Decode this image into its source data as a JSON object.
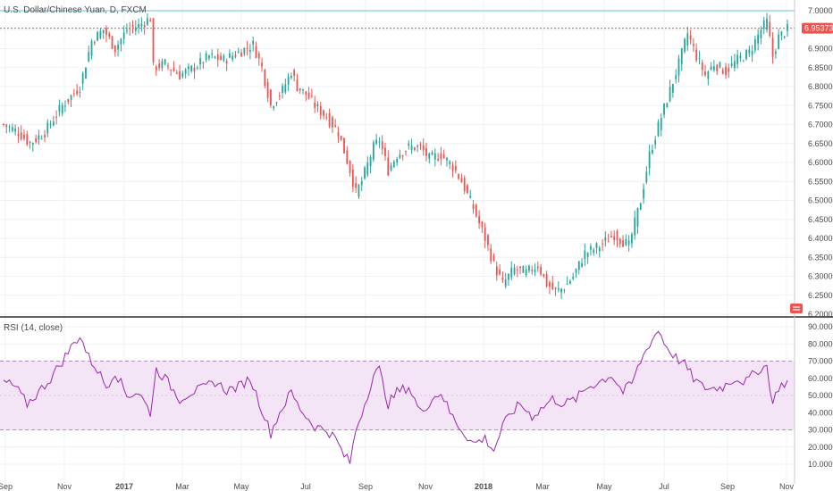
{
  "chart_data": [
    {
      "type": "candlestick",
      "title": "U.S. Dollar/Chinese Yuan, D, FXCM",
      "price_label": "6.95373",
      "ylim": [
        6.19,
        7.05
      ],
      "y_ticks": [
        "7.00000",
        "6.95000",
        "6.90000",
        "6.85000",
        "6.80000",
        "6.75000",
        "6.70000",
        "6.65000",
        "6.60000",
        "6.55000",
        "6.50000",
        "6.45000",
        "6.40000",
        "6.35000",
        "6.30000",
        "6.25000",
        "6.20000"
      ],
      "x_ticks": [
        "Sep",
        "Nov",
        "2017",
        "Mar",
        "May",
        "Jul",
        "Sep",
        "Nov",
        "2018",
        "Mar",
        "May",
        "Jul",
        "Sep",
        "Nov"
      ],
      "reference_lines": [
        7.0,
        6.95373
      ],
      "close_path": [
        [
          0,
          6.7
        ],
        [
          5,
          6.68
        ],
        [
          9,
          6.65
        ],
        [
          14,
          6.68
        ],
        [
          20,
          6.75
        ],
        [
          26,
          6.8
        ],
        [
          30,
          6.92
        ],
        [
          34,
          6.95
        ],
        [
          38,
          6.9
        ],
        [
          42,
          6.95
        ],
        [
          46,
          6.96
        ],
        [
          50,
          6.98
        ],
        [
          51,
          6.85
        ],
        [
          55,
          6.86
        ],
        [
          60,
          6.83
        ],
        [
          65,
          6.85
        ],
        [
          70,
          6.88
        ],
        [
          75,
          6.87
        ],
        [
          80,
          6.89
        ],
        [
          85,
          6.91
        ],
        [
          88,
          6.85
        ],
        [
          91,
          6.75
        ],
        [
          95,
          6.79
        ],
        [
          98,
          6.84
        ],
        [
          100,
          6.8
        ],
        [
          103,
          6.78
        ],
        [
          106,
          6.75
        ],
        [
          110,
          6.72
        ],
        [
          114,
          6.68
        ],
        [
          116,
          6.63
        ],
        [
          118,
          6.58
        ],
        [
          120,
          6.52
        ],
        [
          122,
          6.55
        ],
        [
          126,
          6.64
        ],
        [
          128,
          6.66
        ],
        [
          131,
          6.58
        ],
        [
          134,
          6.62
        ],
        [
          138,
          6.64
        ],
        [
          142,
          6.64
        ],
        [
          145,
          6.61
        ],
        [
          149,
          6.62
        ],
        [
          153,
          6.59
        ],
        [
          156,
          6.55
        ],
        [
          160,
          6.48
        ],
        [
          164,
          6.4
        ],
        [
          167,
          6.33
        ],
        [
          170,
          6.28
        ],
        [
          174,
          6.32
        ],
        [
          178,
          6.31
        ],
        [
          182,
          6.33
        ],
        [
          185,
          6.28
        ],
        [
          188,
          6.26
        ],
        [
          191,
          6.27
        ],
        [
          194,
          6.3
        ],
        [
          198,
          6.36
        ],
        [
          203,
          6.38
        ],
        [
          208,
          6.41
        ],
        [
          213,
          6.38
        ],
        [
          217,
          6.5
        ],
        [
          220,
          6.62
        ],
        [
          224,
          6.72
        ],
        [
          227,
          6.79
        ],
        [
          230,
          6.86
        ],
        [
          233,
          6.94
        ],
        [
          236,
          6.88
        ],
        [
          239,
          6.83
        ],
        [
          242,
          6.86
        ],
        [
          246,
          6.84
        ],
        [
          250,
          6.87
        ],
        [
          254,
          6.89
        ],
        [
          258,
          6.95
        ],
        [
          260,
          6.97
        ],
        [
          262,
          6.88
        ],
        [
          264,
          6.93
        ],
        [
          267,
          6.95
        ]
      ],
      "rsi": {
        "label": "RSI (14, close)",
        "ylim": [
          5,
          93
        ],
        "band": [
          30,
          70
        ],
        "y_ticks": [
          "90.0000",
          "80.0000",
          "70.0000",
          "60.0000",
          "50.0000",
          "40.0000",
          "30.0000",
          "20.0000",
          "10.0000"
        ],
        "values": [
          [
            0,
            58
          ],
          [
            4,
            55
          ],
          [
            8,
            45
          ],
          [
            12,
            52
          ],
          [
            16,
            60
          ],
          [
            20,
            70
          ],
          [
            23,
            78
          ],
          [
            26,
            85
          ],
          [
            29,
            72
          ],
          [
            32,
            65
          ],
          [
            35,
            55
          ],
          [
            38,
            64
          ],
          [
            42,
            50
          ],
          [
            46,
            52
          ],
          [
            50,
            40
          ],
          [
            52,
            65
          ],
          [
            55,
            60
          ],
          [
            60,
            48
          ],
          [
            64,
            52
          ],
          [
            68,
            54
          ],
          [
            72,
            58
          ],
          [
            76,
            53
          ],
          [
            80,
            55
          ],
          [
            84,
            60
          ],
          [
            88,
            42
          ],
          [
            91,
            28
          ],
          [
            94,
            40
          ],
          [
            98,
            52
          ],
          [
            100,
            45
          ],
          [
            103,
            38
          ],
          [
            106,
            32
          ],
          [
            110,
            30
          ],
          [
            113,
            25
          ],
          [
            116,
            15
          ],
          [
            118,
            11
          ],
          [
            120,
            30
          ],
          [
            123,
            45
          ],
          [
            126,
            62
          ],
          [
            128,
            65
          ],
          [
            131,
            45
          ],
          [
            134,
            52
          ],
          [
            138,
            55
          ],
          [
            142,
            40
          ],
          [
            146,
            48
          ],
          [
            149,
            52
          ],
          [
            152,
            40
          ],
          [
            156,
            30
          ],
          [
            160,
            22
          ],
          [
            164,
            25
          ],
          [
            167,
            18
          ],
          [
            170,
            32
          ],
          [
            173,
            40
          ],
          [
            176,
            45
          ],
          [
            180,
            38
          ],
          [
            183,
            42
          ],
          [
            187,
            48
          ],
          [
            191,
            45
          ],
          [
            195,
            48
          ],
          [
            199,
            55
          ],
          [
            203,
            58
          ],
          [
            207,
            62
          ],
          [
            211,
            52
          ],
          [
            214,
            57
          ],
          [
            217,
            70
          ],
          [
            220,
            80
          ],
          [
            223,
            88
          ],
          [
            226,
            78
          ],
          [
            229,
            72
          ],
          [
            232,
            68
          ],
          [
            235,
            60
          ],
          [
            238,
            55
          ],
          [
            241,
            54
          ],
          [
            245,
            55
          ],
          [
            249,
            60
          ],
          [
            253,
            58
          ],
          [
            257,
            65
          ],
          [
            260,
            67
          ],
          [
            262,
            45
          ],
          [
            264,
            55
          ],
          [
            267,
            58
          ]
        ]
      }
    }
  ],
  "colors": {
    "up": "#26a69a",
    "down": "#ef5350",
    "rsi_line": "#9c27b0",
    "rsi_band": "#f3e5f5",
    "price_line": "#ef5350",
    "top_line": "#7fd3d8"
  }
}
